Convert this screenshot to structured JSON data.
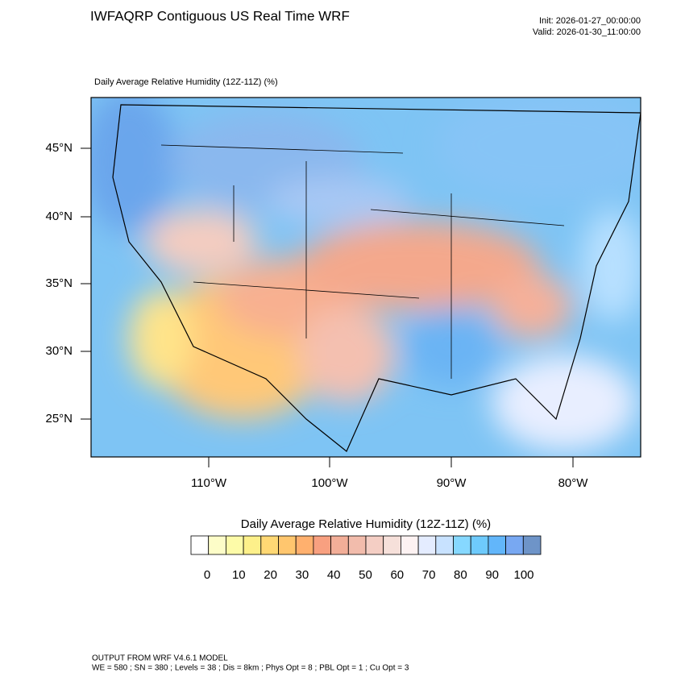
{
  "header": {
    "title": "IWFAQRP Contiguous US Real Time WRF",
    "init": "Init: 2026-01-27_00:00:00",
    "valid": "Valid: 2026-01-30_11:00:00"
  },
  "map": {
    "subtitle": "Daily Average Relative Humidity (12Z-11Z)   (%)",
    "lat_labels": [
      "45°N",
      "40°N",
      "35°N",
      "30°N",
      "25°N"
    ],
    "lon_labels": [
      "110°W",
      "100°W",
      "90°W",
      "80°W"
    ]
  },
  "colorbar": {
    "title": "Daily Average Relative Humidity (12Z-11Z)  (%)",
    "colors": [
      "#ffffff",
      "#fdfdc8",
      "#fdfba8",
      "#fdf08a",
      "#ffd874",
      "#ffc66e",
      "#ffb06e",
      "#f8a080",
      "#f2ae98",
      "#f2bcac",
      "#f4cec4",
      "#f6e0da",
      "#fdf2f2",
      "#e4ecff",
      "#c8e2ff",
      "#86d8ff",
      "#6ecafc",
      "#62b6fa",
      "#78a8f2",
      "#6e94c8"
    ],
    "labels": [
      0,
      10,
      20,
      30,
      40,
      50,
      60,
      70,
      80,
      90,
      100
    ]
  },
  "footer": {
    "line1": "OUTPUT FROM WRF V4.6.1 MODEL",
    "line2": "WE = 580 ; SN = 380 ; Levels = 38 ; Dis = 8km ; Phys Opt = 8 ; PBL Opt = 1 ; Cu Opt = 3"
  }
}
